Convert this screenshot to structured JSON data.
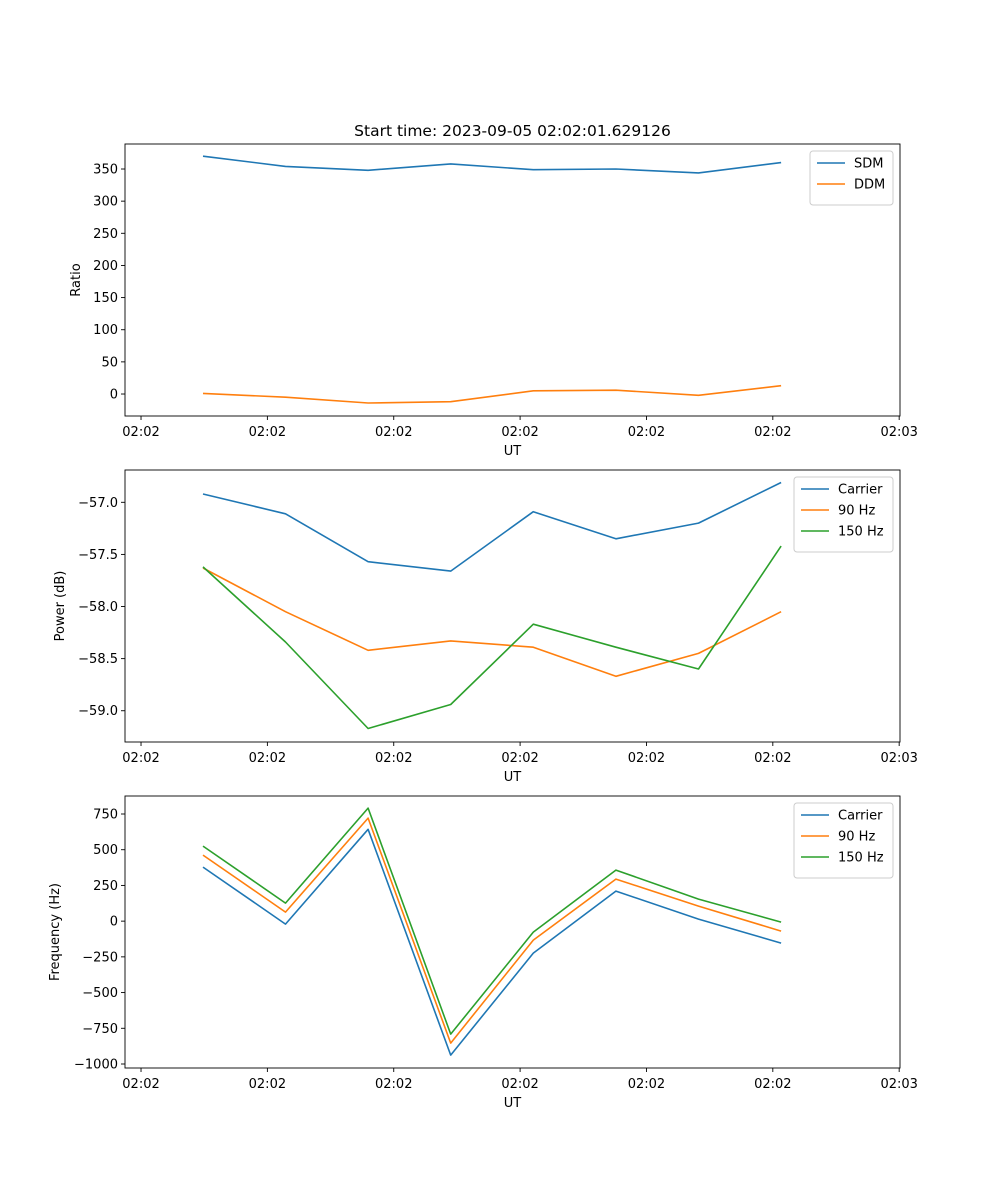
{
  "chart_data": [
    {
      "type": "line",
      "title": "Start time: 2023-09-05 02:02:01.629126",
      "xlabel": "UT",
      "ylabel": "Ratio",
      "x": [
        0,
        1,
        2,
        3,
        4,
        5,
        6,
        7
      ],
      "xlim": [
        -0.944,
        8.44
      ],
      "xticks": [
        -0.75,
        0.78,
        2.31,
        3.84,
        5.37,
        6.9,
        8.43
      ],
      "xtick_labels": [
        "02:02",
        "02:02",
        "02:02",
        "02:02",
        "02:02",
        "02:02",
        "02:03"
      ],
      "ylim": [
        -34.2,
        388.9
      ],
      "yticks": [
        0,
        50,
        100,
        150,
        200,
        250,
        300,
        350
      ],
      "ytick_labels": [
        "0",
        "50",
        "100",
        "150",
        "200",
        "250",
        "300",
        "350"
      ],
      "legend": "top-right",
      "series": [
        {
          "name": "SDM",
          "color": "#1f77b4",
          "values": [
            370,
            354,
            348,
            358,
            349,
            350,
            344,
            360
          ]
        },
        {
          "name": "DDM",
          "color": "#ff7f0e",
          "values": [
            1,
            -5,
            -14,
            -12,
            5,
            6,
            -2,
            13
          ]
        }
      ]
    },
    {
      "type": "line",
      "title": "",
      "xlabel": "UT",
      "ylabel": "Power (dB)",
      "x": [
        0,
        1,
        2,
        3,
        4,
        5,
        6,
        7
      ],
      "xlim": [
        -0.944,
        8.44
      ],
      "xticks": [
        -0.75,
        0.78,
        2.31,
        3.84,
        5.37,
        6.9,
        8.43
      ],
      "xtick_labels": [
        "02:02",
        "02:02",
        "02:02",
        "02:02",
        "02:02",
        "02:02",
        "02:03"
      ],
      "ylim": [
        -59.3,
        -56.69
      ],
      "yticks": [
        -59.0,
        -58.5,
        -58.0,
        -57.5,
        -57.0
      ],
      "ytick_labels": [
        "−59.0",
        "−58.5",
        "−58.0",
        "−57.5",
        "−57.0"
      ],
      "legend": "top-right",
      "series": [
        {
          "name": "Carrier",
          "color": "#1f77b4",
          "values": [
            -56.92,
            -57.11,
            -57.57,
            -57.66,
            -57.09,
            -57.35,
            -57.2,
            -56.81
          ]
        },
        {
          "name": "90 Hz",
          "color": "#ff7f0e",
          "values": [
            -57.63,
            -58.05,
            -58.42,
            -58.33,
            -58.39,
            -58.67,
            -58.45,
            -58.05
          ]
        },
        {
          "name": "150 Hz",
          "color": "#2ca02c",
          "values": [
            -57.62,
            -58.34,
            -59.17,
            -58.94,
            -58.17,
            -58.39,
            -58.6,
            -57.42
          ]
        }
      ]
    },
    {
      "type": "line",
      "title": "",
      "xlabel": "UT",
      "ylabel": "Frequency (Hz)",
      "x": [
        0,
        1,
        2,
        3,
        4,
        5,
        6,
        7
      ],
      "xlim": [
        -0.944,
        8.44
      ],
      "xticks": [
        -0.75,
        0.78,
        2.31,
        3.84,
        5.37,
        6.9,
        8.43
      ],
      "xtick_labels": [
        "02:02",
        "02:02",
        "02:02",
        "02:02",
        "02:02",
        "02:02",
        "02:03"
      ],
      "ylim": [
        -1028,
        876
      ],
      "yticks": [
        -1000,
        -750,
        -500,
        -250,
        0,
        250,
        500,
        750
      ],
      "ytick_labels": [
        "−1000",
        "−750",
        "−500",
        "−250",
        "0",
        "250",
        "500",
        "750"
      ],
      "legend": "top-right",
      "series": [
        {
          "name": "Carrier",
          "color": "#1f77b4",
          "values": [
            378,
            -21,
            643,
            -938,
            -224,
            210,
            14,
            -154
          ]
        },
        {
          "name": "90 Hz",
          "color": "#ff7f0e",
          "values": [
            462,
            63,
            721,
            -854,
            -133,
            294,
            105,
            -70
          ]
        },
        {
          "name": "150 Hz",
          "color": "#2ca02c",
          "values": [
            525,
            126,
            791,
            -791,
            -77,
            357,
            154,
            -7
          ]
        }
      ]
    }
  ]
}
